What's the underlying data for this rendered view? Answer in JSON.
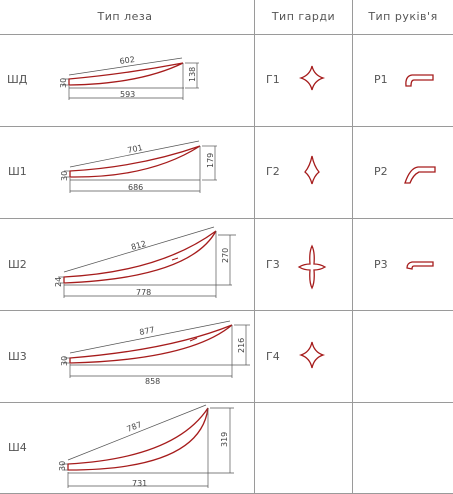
{
  "headers": {
    "blade": "Тип леза",
    "guard": "Тип гарди",
    "handle": "Тип руків'я"
  },
  "colors": {
    "grid": "#9a9a9a",
    "blade": "#a61c1c",
    "dimension": "#555555",
    "text": "#555555"
  },
  "blades": [
    {
      "label": "ШД",
      "length": "602",
      "chord": "593",
      "rise": "138",
      "base": "30"
    },
    {
      "label": "Ш1",
      "length": "701",
      "chord": "686",
      "rise": "179",
      "base": "30"
    },
    {
      "label": "Ш2",
      "length": "812",
      "chord": "778",
      "rise": "270",
      "base": "24"
    },
    {
      "label": "Ш3",
      "length": "877",
      "chord": "858",
      "rise": "216",
      "base": "30"
    },
    {
      "label": "Ш4",
      "length": "787",
      "chord": "731",
      "rise": "319",
      "base": "30"
    }
  ],
  "guards": [
    {
      "label": "Г1",
      "icon": "cross-guard-icon"
    },
    {
      "label": "Г2",
      "icon": "diamond-guard-icon"
    },
    {
      "label": "Г3",
      "icon": "long-cross-guard-icon"
    },
    {
      "label": "Г4",
      "icon": "cross-guard-icon"
    }
  ],
  "handles": [
    {
      "label": "Р1",
      "icon": "hook-handle-icon"
    },
    {
      "label": "Р2",
      "icon": "curved-handle-icon"
    },
    {
      "label": "Р3",
      "icon": "straight-handle-icon"
    }
  ]
}
